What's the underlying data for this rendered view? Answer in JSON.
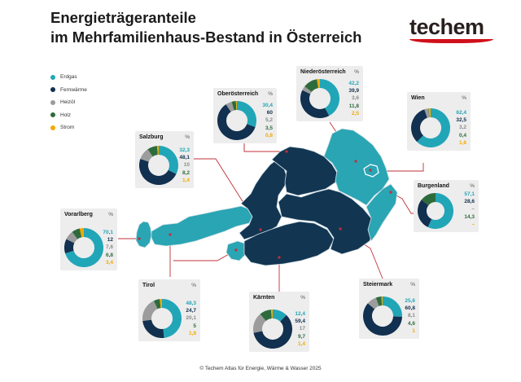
{
  "header": {
    "title_line1": "Energieträgeranteile",
    "title_line2": "im Mehrfamilienhaus-Bestand in Österreich",
    "logo": "techem"
  },
  "colors": {
    "Erdgas": "#21a6b8",
    "Fernwärme": "#12304f",
    "Heizöl": "#9c9c9c",
    "Holz": "#2e6b3c",
    "Strom": "#f2a900",
    "map_light": "#2aa5b4",
    "map_dark": "#123552",
    "leader": "#c0303a"
  },
  "legend": [
    {
      "label": "Erdgas",
      "color": "#21a6b8"
    },
    {
      "label": "Fernwärme",
      "color": "#12304f"
    },
    {
      "label": "Heizöl",
      "color": "#9c9c9c"
    },
    {
      "label": "Holz",
      "color": "#2e6b3c"
    },
    {
      "label": "Strom",
      "color": "#f2a900"
    }
  ],
  "unit_label": "%",
  "chart_data": {
    "type": "pie",
    "subtype": "donut",
    "series_names": [
      "Erdgas",
      "Fernwärme",
      "Heizöl",
      "Holz",
      "Strom"
    ],
    "regions": [
      {
        "name": "Niederösterreich",
        "values": [
          42.2,
          39.9,
          3.6,
          11.8,
          2.5
        ],
        "labels": [
          "42,2",
          "39,9",
          "3,6",
          "11,8",
          "2,5"
        ]
      },
      {
        "name": "Oberösterreich",
        "values": [
          30.4,
          60,
          5.2,
          3.5,
          0.8
        ],
        "labels": [
          "30,4",
          "60",
          "5,2",
          "3,5",
          "0,8"
        ]
      },
      {
        "name": "Wien",
        "values": [
          62.4,
          32.5,
          3.2,
          0.4,
          1.6
        ],
        "labels": [
          "62,4",
          "32,5",
          "3,2",
          "0,4",
          "1,6"
        ]
      },
      {
        "name": "Salzburg",
        "values": [
          32.3,
          48.1,
          10,
          8.2,
          1.4
        ],
        "labels": [
          "32,3",
          "48,1",
          "10",
          "8,2",
          "1,4"
        ]
      },
      {
        "name": "Burgenland",
        "values": [
          57.1,
          28.6,
          0,
          14.3,
          0
        ],
        "labels": [
          "57,1",
          "28,6",
          "–",
          "14,3",
          "–"
        ]
      },
      {
        "name": "Vorarlberg",
        "values": [
          70.1,
          12,
          7.6,
          6.8,
          3.4
        ],
        "labels": [
          "70,1",
          "12",
          "7,6",
          "6,8",
          "3,4"
        ]
      },
      {
        "name": "Tirol",
        "values": [
          48.3,
          24.7,
          20.1,
          5,
          1.9
        ],
        "labels": [
          "48,3",
          "24,7",
          "20,1",
          "5",
          "1,9"
        ]
      },
      {
        "name": "Kärnten",
        "values": [
          12.4,
          59.4,
          17,
          9.7,
          1.4
        ],
        "labels": [
          "12,4",
          "59,4",
          "17",
          "9,7",
          "1,4"
        ]
      },
      {
        "name": "Steiermark",
        "values": [
          25.6,
          60.8,
          8.1,
          4.6,
          1
        ],
        "labels": [
          "25,6",
          "60,8",
          "8,1",
          "4,6",
          "1"
        ]
      }
    ]
  },
  "footer": "© Techem Atlas für Energie, Wärme & Wasser 2025"
}
